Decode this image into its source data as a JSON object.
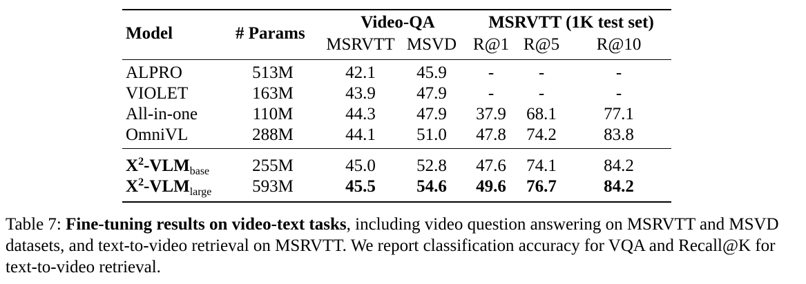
{
  "table": {
    "header": {
      "model": "Model",
      "params": "# Params",
      "group_videoqa": "Video-QA",
      "group_msrvtt": "MSRVTT (1K test set)",
      "sub_msrvtt": "MSRVTT",
      "sub_msvd": "MSVD",
      "r1": "R@1",
      "r5": "R@5",
      "r10": "R@10"
    },
    "rows": [
      {
        "model": "ALPRO",
        "params": "513M",
        "msrvtt": "42.1",
        "msvd": "45.9",
        "r1": "-",
        "r5": "-",
        "r10": "-"
      },
      {
        "model": "VIOLET",
        "params": "163M",
        "msrvtt": "43.9",
        "msvd": "47.9",
        "r1": "-",
        "r5": "-",
        "r10": "-"
      },
      {
        "model": "All-in-one",
        "params": "110M",
        "msrvtt": "44.3",
        "msvd": "47.9",
        "r1": "37.9",
        "r5": "68.1",
        "r10": "77.1"
      },
      {
        "model": "OmniVL",
        "params": "288M",
        "msrvtt": "44.1",
        "msvd": "51.0",
        "r1": "47.8",
        "r5": "74.2",
        "r10": "83.8"
      }
    ],
    "ours": [
      {
        "model_main": "X",
        "model_sup": "2",
        "model_rest": "-VLM",
        "model_sub": "base",
        "params": "255M",
        "msrvtt": "45.0",
        "msvd": "52.8",
        "r1": "47.6",
        "r5": "74.1",
        "r10": "84.2"
      },
      {
        "model_main": "X",
        "model_sup": "2",
        "model_rest": "-VLM",
        "model_sub": "large",
        "params": "593M",
        "msrvtt": "45.5",
        "msvd": "54.6",
        "r1": "49.6",
        "r5": "76.7",
        "r10": "84.2"
      }
    ]
  },
  "caption": {
    "label": "Table 7: ",
    "bold": "Fine-tuning results on video-text tasks",
    "rest": ", including video question answering on MSRVTT and MSVD datasets, and text-to-video retrieval on MSRVTT. We report classification accuracy for VQA and Recall@K for text-to-video retrieval."
  }
}
